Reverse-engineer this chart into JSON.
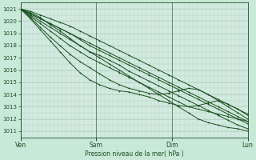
{
  "background_color": "#c8e8d8",
  "plot_bg_color": "#d0ece0",
  "grid_color_v": "#d8c8c8",
  "grid_color_h": "#b0ccc0",
  "line_color": "#1a5020",
  "ylabel_text": "Pression niveau de la mer( hPa )",
  "xtick_labels": [
    "Ven",
    "Sam",
    "Dim",
    "Lun"
  ],
  "xtick_positions": [
    0,
    1,
    2,
    3
  ],
  "ylim": [
    1010.5,
    1021.5
  ],
  "yticks": [
    1011,
    1012,
    1013,
    1014,
    1015,
    1016,
    1017,
    1018,
    1019,
    1020,
    1021
  ],
  "figsize": [
    3.2,
    2.0
  ],
  "dpi": 100,
  "lines": [
    [
      1021.0,
      1020.7,
      1020.3,
      1019.7,
      1019.2,
      1018.6,
      1018.0,
      1017.5,
      1017.2,
      1016.8,
      1016.4,
      1015.9,
      1015.5,
      1015.1,
      1014.7,
      1014.3,
      1013.9,
      1013.5,
      1013.1,
      1012.7,
      1012.3,
      1011.9,
      1011.5,
      1011.2
    ],
    [
      1021.0,
      1020.6,
      1020.2,
      1019.8,
      1019.4,
      1019.0,
      1018.5,
      1018.0,
      1017.6,
      1017.2,
      1016.8,
      1016.4,
      1016.0,
      1015.6,
      1015.2,
      1014.8,
      1014.4,
      1014.0,
      1013.6,
      1013.2,
      1012.8,
      1012.4,
      1012.0,
      1011.6
    ],
    [
      1021.0,
      1020.5,
      1020.0,
      1019.5,
      1019.0,
      1018.5,
      1018.0,
      1017.5,
      1017.0,
      1016.5,
      1016.0,
      1015.5,
      1015.0,
      1014.5,
      1014.0,
      1013.5,
      1013.0,
      1012.5,
      1012.0,
      1011.7,
      1011.5,
      1011.3,
      1011.2,
      1011.0
    ],
    [
      1021.0,
      1020.4,
      1019.8,
      1019.2,
      1018.6,
      1018.0,
      1017.5,
      1017.0,
      1016.6,
      1016.2,
      1015.8,
      1015.4,
      1015.0,
      1014.6,
      1014.2,
      1013.8,
      1013.4,
      1013.0,
      1012.8,
      1012.6,
      1012.4,
      1012.2,
      1012.0,
      1011.8
    ],
    [
      1021.0,
      1020.3,
      1019.5,
      1018.7,
      1018.0,
      1017.3,
      1016.7,
      1016.2,
      1015.7,
      1015.2,
      1014.8,
      1014.5,
      1014.3,
      1014.1,
      1014.0,
      1014.1,
      1014.3,
      1014.5,
      1014.4,
      1014.0,
      1013.5,
      1013.0,
      1012.5,
      1012.0
    ],
    [
      1021.0,
      1020.6,
      1020.2,
      1019.8,
      1019.4,
      1019.0,
      1018.6,
      1018.2,
      1017.8,
      1017.4,
      1017.0,
      1016.6,
      1016.2,
      1015.8,
      1015.4,
      1015.0,
      1014.6,
      1014.2,
      1013.8,
      1013.4,
      1013.0,
      1012.6,
      1012.2,
      1011.8
    ],
    [
      1021.0,
      1020.8,
      1020.5,
      1020.2,
      1019.9,
      1019.6,
      1019.2,
      1018.8,
      1018.4,
      1018.0,
      1017.6,
      1017.2,
      1016.8,
      1016.4,
      1016.0,
      1015.6,
      1015.2,
      1014.8,
      1014.4,
      1014.0,
      1013.6,
      1013.2,
      1012.8,
      1012.4
    ]
  ],
  "dip_line": [
    1021.0,
    1020.2,
    1019.3,
    1018.4,
    1017.5,
    1016.6,
    1015.8,
    1015.2,
    1014.8,
    1014.5,
    1014.3,
    1014.2,
    1014.0,
    1013.8,
    1013.5,
    1013.3,
    1013.1,
    1013.0,
    1013.1,
    1013.3,
    1013.5,
    1013.2,
    1012.8,
    1012.3
  ]
}
